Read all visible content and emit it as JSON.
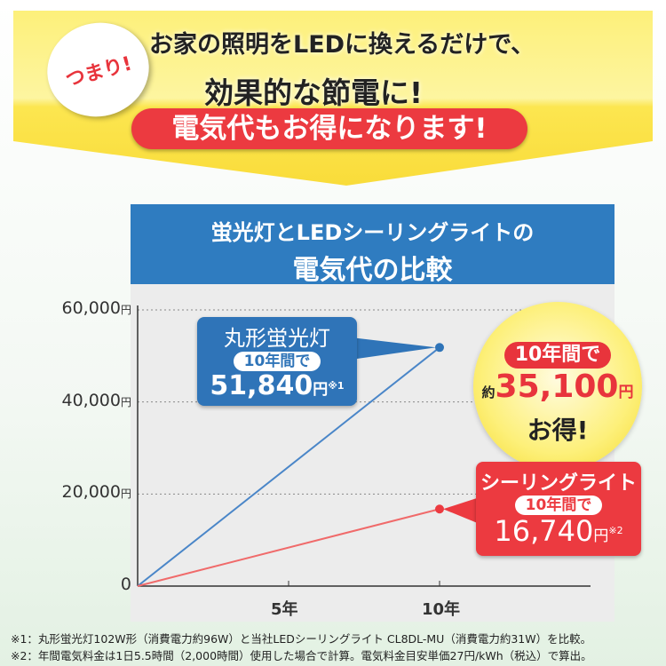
{
  "banner": {
    "badge": "つまり!",
    "line1": "お家の照明をLEDに換えるだけで、",
    "line2": "効果的な節電に!",
    "line3": "電気代もお得になります!"
  },
  "colors": {
    "banner": "#fde95a",
    "blue": "#2f7cc0",
    "red": "#ec3a40"
  },
  "chart_data": {
    "type": "line",
    "title": "蛍光灯とLEDシーリングライトの",
    "title2": "電気代の比較",
    "ylim": [
      0,
      60000
    ],
    "yticks": [
      {
        "v": 0,
        "label": "0",
        "unit": ""
      },
      {
        "v": 20000,
        "label": "20,000",
        "unit": "円"
      },
      {
        "v": 40000,
        "label": "40,000",
        "unit": "円"
      },
      {
        "v": 60000,
        "label": "60,000",
        "unit": "円"
      }
    ],
    "xlim": [
      0,
      15
    ],
    "xticks": [
      {
        "v": 5,
        "label": "5年"
      },
      {
        "v": 10,
        "label": "10年"
      }
    ],
    "grid": "dotted horizontal",
    "series": [
      {
        "name": "丸形蛍光灯",
        "color": "#4a86c8",
        "points": [
          [
            0,
            0
          ],
          [
            10,
            51840
          ]
        ]
      },
      {
        "name": "シーリングライト",
        "color": "#f06a6a",
        "points": [
          [
            0,
            0
          ],
          [
            10,
            16740
          ]
        ]
      }
    ]
  },
  "callouts": {
    "fluor": {
      "name": "丸形蛍光灯",
      "period": "10年間で",
      "value": "51,840",
      "unit": "円",
      "note": "※1"
    },
    "led": {
      "name": "シーリングライト",
      "period": "10年間で",
      "value": "16,740",
      "unit": "円",
      "note": "※2"
    },
    "saving": {
      "period": "10年間で",
      "prefix": "約",
      "value": "35,100",
      "unit": "円",
      "suffix": "お得!"
    }
  },
  "footnotes": [
    "※1：丸形蛍光灯102W形（消費電力約96W）と当社LEDシーリングライト CL8DL-MU（消費電力約31W）を比較。",
    "※2：年間電気料金は1日5.5時間（2,000時間）使用した場合で計算。電気料金目安単価27円/kWh（税込）で算出。"
  ]
}
